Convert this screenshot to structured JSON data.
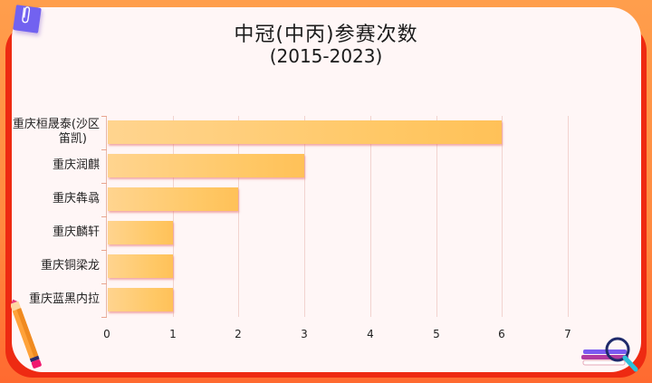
{
  "header": {
    "title": "中冠(中丙)参赛次数",
    "subtitle": "(2015-2023)"
  },
  "colors": {
    "background": "#FF9A4A",
    "frame": "#EE2A12",
    "panel": "#FFF6F6",
    "bar_start": "#FFD48F",
    "bar_end": "#FFC158",
    "accent_clip": "#7262F0"
  },
  "decorations": {
    "top_left": "paperclip-note-icon",
    "bottom_left": "pencil-icon",
    "bottom_right": "books-magnifier-icon"
  },
  "chart_data": {
    "type": "bar",
    "orientation": "horizontal",
    "title": "中冠(中丙)参赛次数",
    "subtitle": "(2015-2023)",
    "categories": [
      "重庆桓晟泰(沙区笛凯)",
      "重庆润麒",
      "重庆犇骉",
      "重庆麟轩",
      "重庆铜梁龙",
      "重庆蓝黑内拉"
    ],
    "values": [
      6,
      3,
      2,
      1,
      1,
      1
    ],
    "xlabel": "",
    "ylabel": "",
    "xlim": [
      0,
      7
    ],
    "xticks": [
      "0",
      "1",
      "2",
      "3",
      "4",
      "5",
      "6",
      "7"
    ],
    "grid": true,
    "legend": null
  },
  "axis": {
    "xticks": [
      "0",
      "1",
      "2",
      "3",
      "4",
      "5",
      "6",
      "7"
    ],
    "ylabels": [
      {
        "line1": "重庆桓晟泰(沙区",
        "line2": "笛凯)"
      },
      {
        "line1": "重庆润麒",
        "line2": ""
      },
      {
        "line1": "重庆犇骉",
        "line2": ""
      },
      {
        "line1": "重庆麟轩",
        "line2": ""
      },
      {
        "line1": "重庆铜梁龙",
        "line2": ""
      },
      {
        "line1": "重庆蓝黑内拉",
        "line2": ""
      }
    ]
  }
}
